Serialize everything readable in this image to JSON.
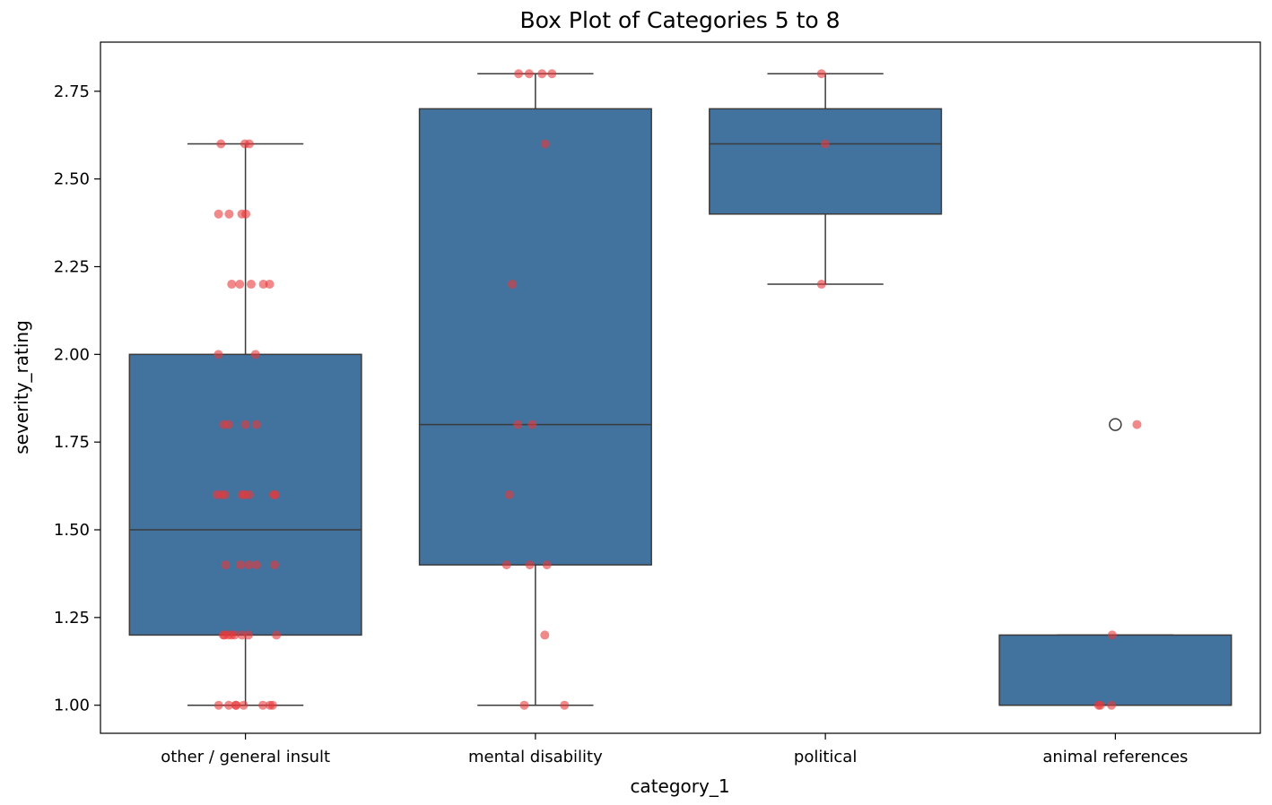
{
  "chart_data": {
    "type": "box",
    "title": "Box Plot of Categories 5 to 8",
    "xlabel": "category_1",
    "ylabel": "severity_rating",
    "categories": [
      "other / general insult",
      "mental disability",
      "political",
      "animal references"
    ],
    "ylim": [
      0.92,
      2.89
    ],
    "yticks": [
      1.0,
      1.25,
      1.5,
      1.75,
      2.0,
      2.25,
      2.5,
      2.75
    ],
    "ytick_labels": [
      "1.00",
      "1.25",
      "1.50",
      "1.75",
      "2.00",
      "2.25",
      "2.50",
      "2.75"
    ],
    "box_color": "#42729e",
    "point_color": "#e8393a",
    "grid": false,
    "boxes": [
      {
        "category": "other / general insult",
        "q1": 1.2,
        "median": 1.5,
        "q3": 2.0,
        "whisker_low": 1.0,
        "whisker_high": 2.6,
        "outliers": []
      },
      {
        "category": "mental disability",
        "q1": 1.4,
        "median": 1.8,
        "q3": 2.7,
        "whisker_low": 1.0,
        "whisker_high": 2.8,
        "outliers": []
      },
      {
        "category": "political",
        "q1": 2.4,
        "median": 2.6,
        "q3": 2.7,
        "whisker_low": 2.2,
        "whisker_high": 2.8,
        "outliers": []
      },
      {
        "category": "animal references",
        "q1": 1.0,
        "median": 1.0,
        "q3": 1.2,
        "whisker_low": 1.0,
        "whisker_high": 1.2,
        "outliers": [
          1.8
        ]
      }
    ],
    "points": [
      {
        "category": "other / general insult",
        "values": [
          2.6,
          2.6,
          2.6,
          2.4,
          2.4,
          2.4,
          2.4,
          2.2,
          2.2,
          2.2,
          2.2,
          2.2,
          2.0,
          2.0,
          1.8,
          1.8,
          1.8,
          1.8,
          1.6,
          1.6,
          1.6,
          1.6,
          1.6,
          1.6,
          1.6,
          1.6,
          1.4,
          1.4,
          1.4,
          1.4,
          1.4,
          1.2,
          1.2,
          1.2,
          1.2,
          1.2,
          1.2,
          1.2,
          1.2,
          1.0,
          1.0,
          1.0,
          1.0,
          1.0,
          1.0,
          1.0,
          1.0
        ]
      },
      {
        "category": "mental disability",
        "values": [
          2.8,
          2.8,
          2.8,
          2.8,
          2.6,
          2.2,
          1.8,
          1.8,
          1.6,
          1.4,
          1.4,
          1.4,
          1.2,
          1.0,
          1.0
        ]
      },
      {
        "category": "political",
        "values": [
          2.8,
          2.6,
          2.2
        ]
      },
      {
        "category": "animal references",
        "values": [
          1.8,
          1.2,
          1.0,
          1.0,
          1.0
        ]
      }
    ]
  }
}
